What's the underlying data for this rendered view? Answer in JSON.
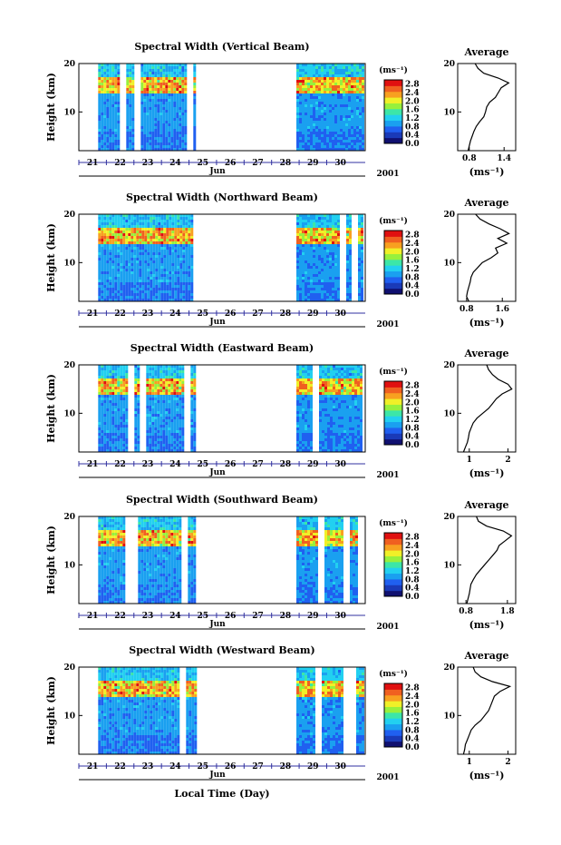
{
  "figure": {
    "xlabel": "Local Time (Day)",
    "month_label": "Jun",
    "year_label": "2001",
    "ylabel": "Height (km)",
    "colorbar_unit": "(ms⁻¹)",
    "avg_title": "Average",
    "avg_unit": "(ms⁻¹)"
  },
  "colors": {
    "colormap": [
      "#101070",
      "#1a3ab8",
      "#2060f0",
      "#1aa0f0",
      "#22d0f0",
      "#3ce6a8",
      "#98f03c",
      "#f0f028",
      "#f8a020",
      "#f06020",
      "#e01010"
    ],
    "gap": "#ffffff",
    "axis": "#000000",
    "time_axis": "#3030a0"
  },
  "chart_data": [
    {
      "type": "heatmap",
      "title": "Spectral Width (Vertical Beam)",
      "x_ticks": [
        "21",
        "22",
        "23",
        "24",
        "25",
        "26",
        "27",
        "28",
        "29",
        "30"
      ],
      "xlim_day": [
        20.5,
        30.9
      ],
      "data_segments_day": [
        [
          21.2,
          24.7
        ],
        [
          28.4,
          30.8
        ]
      ],
      "y_ticks": [
        "10",
        "20"
      ],
      "ylim_km": [
        2,
        20
      ],
      "colorbar_ticks": [
        "0.0",
        "0.4",
        "0.8",
        "1.2",
        "1.6",
        "2.0",
        "2.4",
        "2.8"
      ],
      "colorbar_range": [
        0,
        3.0
      ],
      "average_profile": {
        "xticks": [
          "0.8",
          "1.4"
        ],
        "xlim": [
          0.6,
          1.6
        ],
        "height_km": [
          2,
          3,
          4,
          5,
          6,
          7,
          8,
          9,
          10,
          11,
          12,
          13,
          14,
          15,
          16,
          17,
          18,
          19,
          20
        ],
        "width_ms": [
          0.78,
          0.8,
          0.82,
          0.85,
          0.88,
          0.92,
          0.98,
          1.05,
          1.08,
          1.1,
          1.15,
          1.25,
          1.3,
          1.35,
          1.48,
          1.3,
          1.05,
          0.95,
          0.9
        ]
      }
    },
    {
      "type": "heatmap",
      "title": "Spectral Width (Northward Beam)",
      "x_ticks": [
        "21",
        "22",
        "23",
        "24",
        "25",
        "26",
        "27",
        "28",
        "29",
        "30"
      ],
      "xlim_day": [
        20.5,
        30.9
      ],
      "data_segments_day": [
        [
          21.2,
          24.7
        ],
        [
          28.4,
          30.8
        ]
      ],
      "y_ticks": [
        "10",
        "20"
      ],
      "ylim_km": [
        2,
        20
      ],
      "colorbar_ticks": [
        "0.0",
        "0.4",
        "0.8",
        "1.2",
        "1.6",
        "2.0",
        "2.4",
        "2.8"
      ],
      "colorbar_range": [
        0,
        3.0
      ],
      "average_profile": {
        "xticks": [
          "0.8",
          "1.6"
        ],
        "xlim": [
          0.6,
          1.9
        ],
        "height_km": [
          2,
          3,
          4,
          5,
          6,
          7,
          8,
          9,
          10,
          11,
          12,
          13,
          14,
          15,
          16,
          17,
          18,
          19,
          20
        ],
        "width_ms": [
          0.85,
          0.8,
          0.82,
          0.85,
          0.88,
          0.9,
          0.95,
          1.05,
          1.15,
          1.35,
          1.5,
          1.45,
          1.7,
          1.5,
          1.75,
          1.55,
          1.3,
          1.1,
          1.0
        ]
      }
    },
    {
      "type": "heatmap",
      "title": "Spectral Width (Eastward Beam)",
      "x_ticks": [
        "21",
        "22",
        "23",
        "24",
        "25",
        "26",
        "27",
        "28",
        "29",
        "30"
      ],
      "xlim_day": [
        20.5,
        30.9
      ],
      "data_segments_day": [
        [
          21.2,
          24.7
        ],
        [
          28.4,
          30.8
        ]
      ],
      "y_ticks": [
        "10",
        "20"
      ],
      "ylim_km": [
        2,
        20
      ],
      "colorbar_ticks": [
        "0.0",
        "0.4",
        "0.8",
        "1.2",
        "1.6",
        "2.0",
        "2.4",
        "2.8"
      ],
      "colorbar_range": [
        0,
        3.0
      ],
      "average_profile": {
        "xticks": [
          "1",
          "2"
        ],
        "xlim": [
          0.7,
          2.2
        ],
        "height_km": [
          2,
          3,
          4,
          5,
          6,
          7,
          8,
          9,
          10,
          11,
          12,
          13,
          14,
          15,
          16,
          17,
          18,
          19,
          20
        ],
        "width_ms": [
          0.85,
          0.9,
          0.95,
          0.98,
          1.0,
          1.05,
          1.1,
          1.2,
          1.35,
          1.5,
          1.6,
          1.7,
          1.85,
          2.1,
          2.0,
          1.75,
          1.6,
          1.5,
          1.45
        ]
      }
    },
    {
      "type": "heatmap",
      "title": "Spectral Width (Southward Beam)",
      "x_ticks": [
        "21",
        "22",
        "23",
        "24",
        "25",
        "26",
        "27",
        "28",
        "29",
        "30"
      ],
      "xlim_day": [
        20.5,
        30.9
      ],
      "data_segments_day": [
        [
          21.2,
          24.7
        ],
        [
          28.4,
          30.8
        ]
      ],
      "y_ticks": [
        "10",
        "20"
      ],
      "ylim_km": [
        2,
        20
      ],
      "colorbar_ticks": [
        "0.0",
        "0.4",
        "0.8",
        "1.2",
        "1.6",
        "2.0",
        "2.4",
        "2.8"
      ],
      "colorbar_range": [
        0,
        3.0
      ],
      "average_profile": {
        "xticks": [
          "0.8",
          "1.8"
        ],
        "xlim": [
          0.6,
          2.0
        ],
        "height_km": [
          2,
          3,
          4,
          5,
          6,
          7,
          8,
          9,
          10,
          11,
          12,
          13,
          14,
          15,
          16,
          17,
          18,
          19,
          20
        ],
        "width_ms": [
          0.82,
          0.85,
          0.88,
          0.9,
          0.92,
          0.98,
          1.05,
          1.15,
          1.25,
          1.35,
          1.45,
          1.55,
          1.6,
          1.75,
          1.9,
          1.7,
          1.3,
          1.1,
          1.05
        ]
      }
    },
    {
      "type": "heatmap",
      "title": "Spectral Width (Westward Beam)",
      "x_ticks": [
        "21",
        "22",
        "23",
        "24",
        "25",
        "26",
        "27",
        "28",
        "29",
        "30"
      ],
      "xlim_day": [
        20.5,
        30.9
      ],
      "data_segments_day": [
        [
          21.2,
          24.7
        ],
        [
          28.4,
          30.8
        ]
      ],
      "y_ticks": [
        "10",
        "20"
      ],
      "ylim_km": [
        2,
        20
      ],
      "colorbar_ticks": [
        "0.0",
        "0.4",
        "0.8",
        "1.2",
        "1.6",
        "2.0",
        "2.4",
        "2.8"
      ],
      "colorbar_range": [
        0,
        3.0
      ],
      "average_profile": {
        "xticks": [
          "1",
          "2"
        ],
        "xlim": [
          0.7,
          2.2
        ],
        "height_km": [
          2,
          3,
          4,
          5,
          6,
          7,
          8,
          9,
          10,
          11,
          12,
          13,
          14,
          15,
          16,
          17,
          18,
          19,
          20
        ],
        "width_ms": [
          0.85,
          0.88,
          0.9,
          0.95,
          1.0,
          1.05,
          1.15,
          1.3,
          1.4,
          1.5,
          1.55,
          1.6,
          1.65,
          1.8,
          2.05,
          1.6,
          1.3,
          1.15,
          1.1
        ]
      }
    }
  ]
}
